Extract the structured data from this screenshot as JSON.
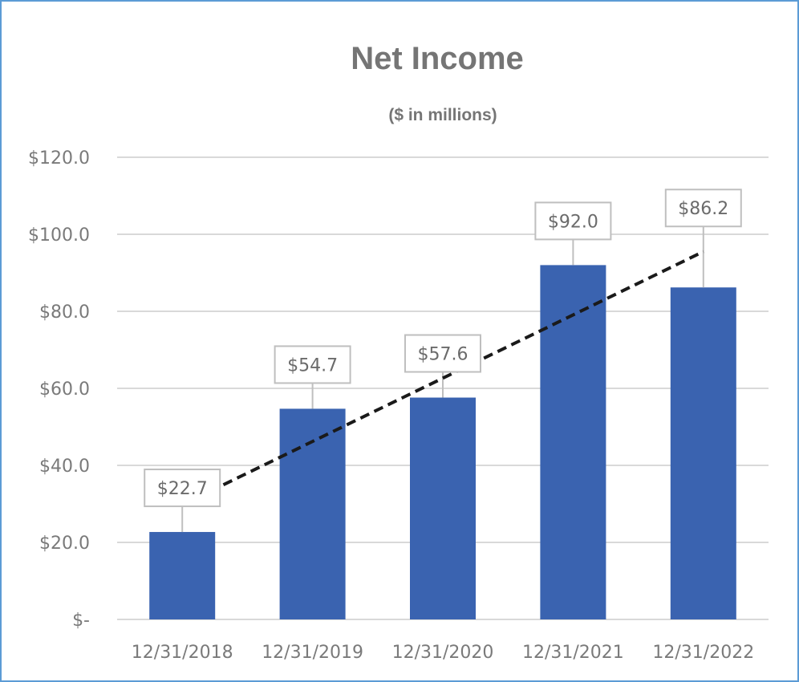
{
  "chart_data": {
    "type": "bar",
    "title": "Net Income",
    "subtitle": "($ in millions)",
    "categories": [
      "12/31/2018",
      "12/31/2019",
      "12/31/2020",
      "12/31/2021",
      "12/31/2022"
    ],
    "values": [
      22.7,
      54.7,
      57.6,
      92.0,
      86.2
    ],
    "data_labels": [
      "$22.7",
      "$54.7",
      "$57.6",
      "$92.0",
      "$86.2"
    ],
    "y_ticks": [
      0,
      20,
      40,
      60,
      80,
      100,
      120
    ],
    "y_tick_labels": [
      "$-",
      "$20.0",
      "$40.0",
      "$60.0",
      "$80.0",
      "$100.0",
      "$120.0"
    ],
    "ylim": [
      0,
      120
    ],
    "trendline": "linear",
    "grid": true,
    "legend": "none",
    "colors": {
      "bar": "#3a63b0",
      "gridline": "#d9d9d9",
      "trendline": "#1a1a1a",
      "frame": "#5b9bd5",
      "label_border": "#bfbfbf",
      "text": "#757575"
    }
  }
}
